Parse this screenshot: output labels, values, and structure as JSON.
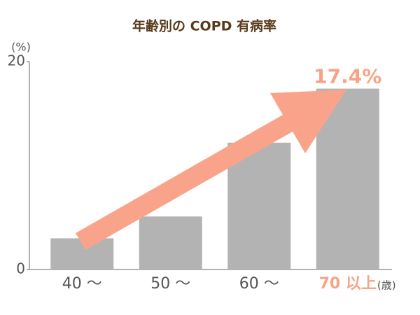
{
  "chart_data": {
    "type": "bar",
    "title": "年齢別の COPD 有病率",
    "y_unit": "(%)",
    "x_unit": "(歳)",
    "categories": [
      "40 ～",
      "50 ～",
      "60 ～",
      "70 以上"
    ],
    "values": [
      3.0,
      5.1,
      12.2,
      17.4
    ],
    "value_labels": [
      null,
      null,
      null,
      "17.4%"
    ],
    "color": "#b3b3b3",
    "category_label_colors": [
      "#555555",
      "#555555",
      "#555555",
      "#f7a486"
    ],
    "ylim": [
      0,
      20
    ],
    "yticks": [
      0,
      20
    ],
    "grid": false
  }
}
